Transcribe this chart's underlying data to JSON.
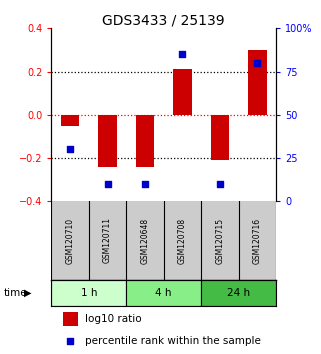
{
  "title": "GDS3433 / 25139",
  "samples": [
    "GSM120710",
    "GSM120711",
    "GSM120648",
    "GSM120708",
    "GSM120715",
    "GSM120716"
  ],
  "log10_ratio": [
    -0.05,
    -0.24,
    -0.24,
    0.21,
    -0.21,
    0.3
  ],
  "percentile_rank": [
    30,
    10,
    10,
    85,
    10,
    80
  ],
  "ylim_left": [
    -0.4,
    0.4
  ],
  "ylim_right": [
    0,
    100
  ],
  "yticks_left": [
    -0.4,
    -0.2,
    0,
    0.2,
    0.4
  ],
  "yticks_right": [
    0,
    25,
    50,
    75,
    100
  ],
  "ytick_labels_right": [
    "0",
    "25",
    "50",
    "75",
    "100%"
  ],
  "dotted_lines_black": [
    -0.2,
    0.2
  ],
  "dotted_line_red": 0,
  "bar_color": "#cc0000",
  "dot_color": "#0000cc",
  "bar_width": 0.5,
  "time_groups": [
    {
      "label": "1 h",
      "indices": [
        0,
        1
      ],
      "color": "#ccffcc"
    },
    {
      "label": "4 h",
      "indices": [
        2,
        3
      ],
      "color": "#88ee88"
    },
    {
      "label": "24 h",
      "indices": [
        4,
        5
      ],
      "color": "#44bb44"
    }
  ],
  "sample_row_color": "#cccccc",
  "legend_bar_label": "log10 ratio",
  "legend_dot_label": "percentile rank within the sample",
  "title_fontsize": 10,
  "tick_fontsize": 7,
  "label_fontsize": 7.5
}
